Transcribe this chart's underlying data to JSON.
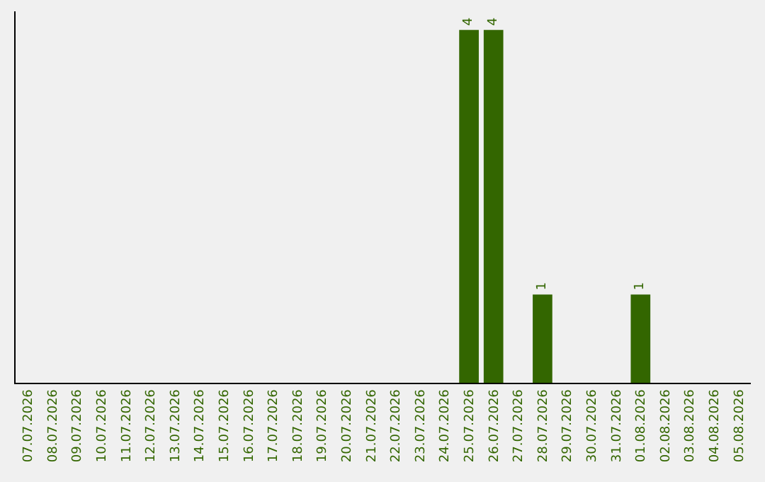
{
  "chart_data": {
    "type": "bar",
    "categories": [
      "07.07.2026",
      "08.07.2026",
      "09.07.2026",
      "10.07.2026",
      "11.07.2026",
      "12.07.2026",
      "13.07.2026",
      "14.07.2026",
      "15.07.2026",
      "16.07.2026",
      "17.07.2026",
      "18.07.2026",
      "19.07.2026",
      "20.07.2026",
      "21.07.2026",
      "22.07.2026",
      "23.07.2026",
      "24.07.2026",
      "25.07.2026",
      "26.07.2026",
      "27.07.2026",
      "28.07.2026",
      "29.07.2026",
      "30.07.2026",
      "31.07.2026",
      "01.08.2026",
      "02.08.2026",
      "03.08.2026",
      "04.08.2026",
      "05.08.2026"
    ],
    "values": [
      null,
      null,
      null,
      null,
      null,
      null,
      null,
      null,
      null,
      null,
      null,
      null,
      null,
      null,
      null,
      null,
      null,
      null,
      4,
      4,
      null,
      1,
      null,
      null,
      null,
      1,
      null,
      null,
      null,
      null
    ],
    "color": "#336600",
    "data_labels": true,
    "tick_labels": "x",
    "grid": false,
    "legend": false
  }
}
